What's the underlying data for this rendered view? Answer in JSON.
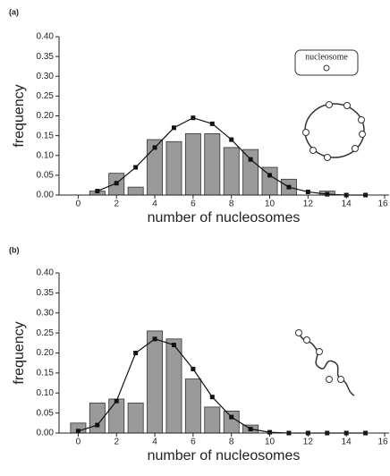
{
  "chart_data": [
    {
      "type": "bar",
      "panel_label": "(a)",
      "ylabel": "frequency",
      "xlabel": "number of nucleosomes",
      "annotation": "nucleosome",
      "x": [
        0,
        1,
        2,
        3,
        4,
        5,
        6,
        7,
        8,
        9,
        10,
        11,
        12,
        13,
        14,
        15
      ],
      "series": [
        {
          "type": "bar",
          "color": "#9a9a9a",
          "values": [
            0,
            0.01,
            0.055,
            0.02,
            0.14,
            0.135,
            0.155,
            0.155,
            0.12,
            0.115,
            0.07,
            0.04,
            0,
            0.01,
            0,
            0
          ]
        },
        {
          "type": "line",
          "color": "#111111",
          "values": [
            null,
            0.01,
            0.03,
            0.07,
            0.12,
            0.17,
            0.195,
            0.18,
            0.14,
            0.09,
            0.05,
            0.02,
            0.008,
            0.002,
            0,
            0
          ]
        }
      ],
      "xlim": [
        -1,
        16
      ],
      "xticks": [
        0,
        2,
        4,
        6,
        8,
        10,
        12,
        14,
        16
      ],
      "ylim": [
        0,
        0.4
      ],
      "yticks": [
        {
          "value": 0,
          "label": "0.00"
        },
        {
          "value": 0.05,
          "label": "0.05"
        },
        {
          "value": 0.1,
          "label": "0.10"
        },
        {
          "value": 0.15,
          "label": "0.15"
        },
        {
          "value": 0.2,
          "label": "0.20"
        },
        {
          "value": 0.25,
          "label": "0.25"
        },
        {
          "value": 0.3,
          "label": "0.30"
        },
        {
          "value": 0.35,
          "label": "0.35"
        },
        {
          "value": 0.4,
          "label": "0.40"
        }
      ]
    },
    {
      "type": "bar",
      "panel_label": "(b)",
      "ylabel": "frequency",
      "xlabel": "number of nucleosomes",
      "x": [
        0,
        1,
        2,
        3,
        4,
        5,
        6,
        7,
        8,
        9,
        10,
        11,
        12,
        13,
        14,
        15
      ],
      "series": [
        {
          "type": "bar",
          "color": "#9a9a9a",
          "values": [
            0.025,
            0.075,
            0.085,
            0.075,
            0.255,
            0.235,
            0.135,
            0.065,
            0.055,
            0.02,
            0,
            0,
            0,
            0,
            0,
            0
          ]
        },
        {
          "type": "line",
          "color": "#111111",
          "values": [
            0.005,
            0.02,
            0.08,
            0.2,
            0.235,
            0.22,
            0.16,
            0.09,
            0.04,
            0.01,
            0.002,
            0,
            0,
            0,
            0,
            0
          ]
        }
      ],
      "xlim": [
        -1,
        16
      ],
      "xticks": [
        0,
        2,
        4,
        6,
        8,
        10,
        12,
        14,
        16
      ],
      "ylim": [
        0,
        0.4
      ],
      "yticks": [
        {
          "value": 0,
          "label": "0.00"
        },
        {
          "value": 0.05,
          "label": "0.05"
        },
        {
          "value": 0.1,
          "label": "0.10"
        },
        {
          "value": 0.15,
          "label": "0.15"
        },
        {
          "value": 0.2,
          "label": "0.20"
        },
        {
          "value": 0.25,
          "label": "0.25"
        },
        {
          "value": 0.3,
          "label": "0.30"
        },
        {
          "value": 0.35,
          "label": "0.35"
        },
        {
          "value": 0.4,
          "label": "0.40"
        }
      ]
    }
  ]
}
